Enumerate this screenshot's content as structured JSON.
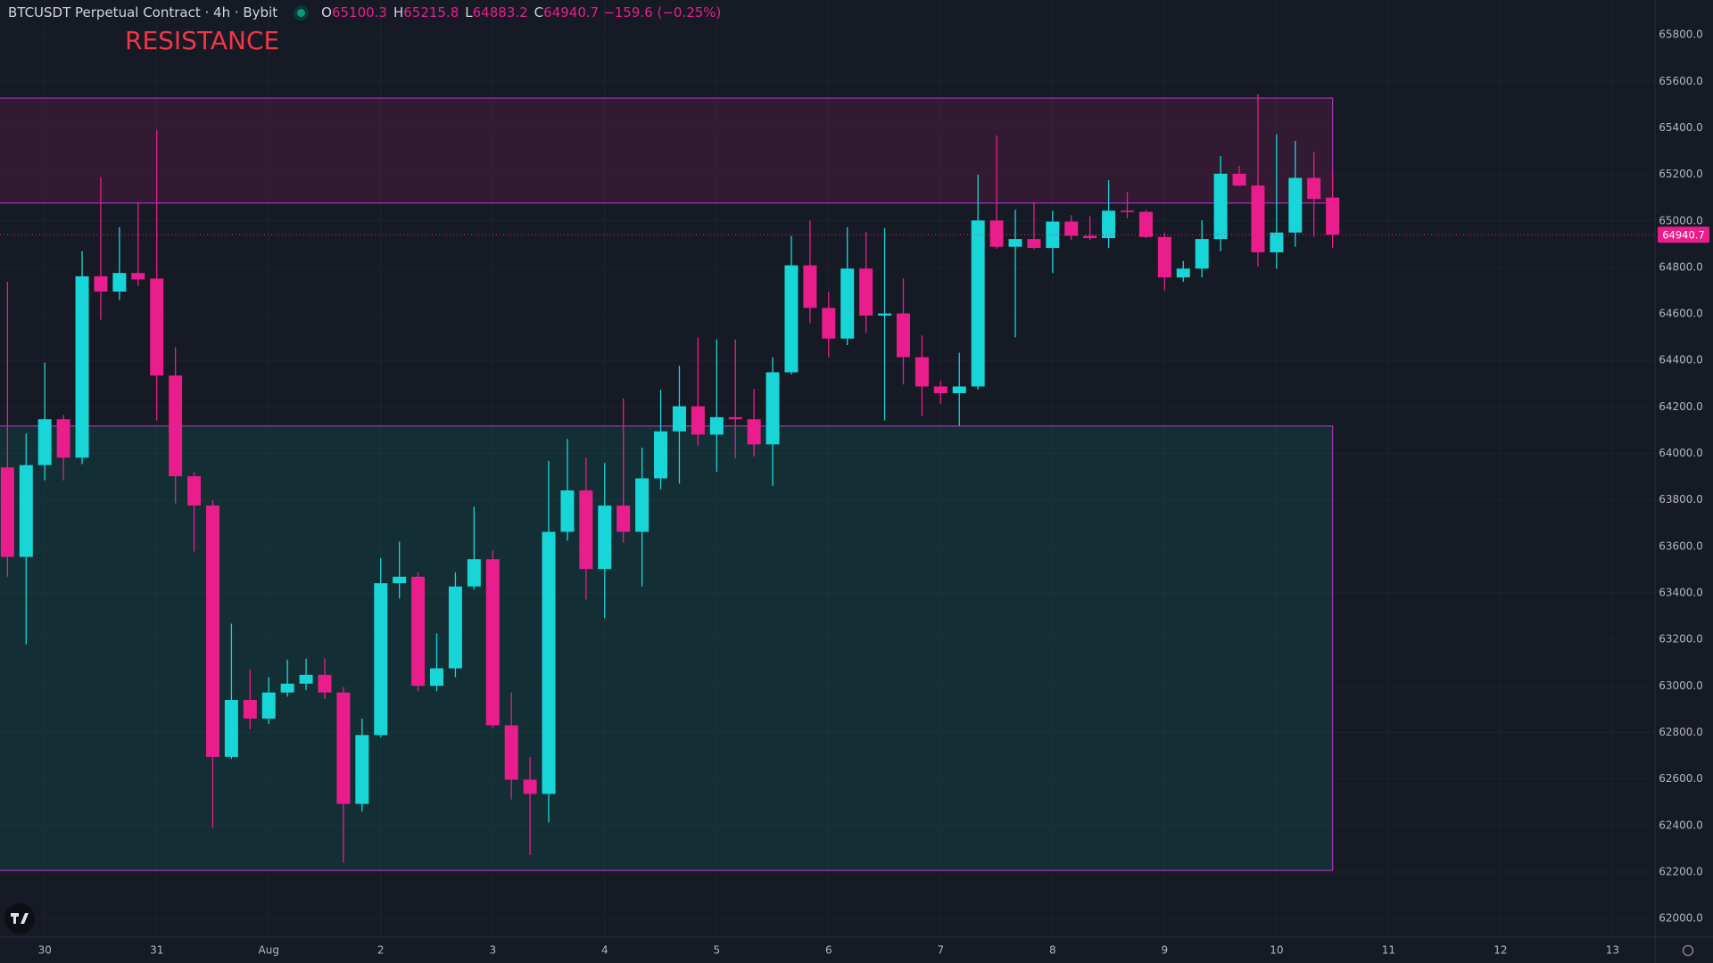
{
  "chart_data": {
    "type": "candlestick",
    "title": "BTCUSDT Perpetual Contract · 4h · Bybit",
    "ohlc_labels": [
      "O",
      "H",
      "L",
      "C"
    ],
    "change": "−159.6 (−0.25%)",
    "up_color": "#18d6d8",
    "down_color": "#e91e8c",
    "x": [
      -8,
      -4,
      0,
      4,
      8,
      12,
      16,
      20,
      24,
      28,
      32,
      36,
      40,
      44,
      48,
      52,
      56,
      60,
      64,
      68,
      72,
      76,
      80,
      84,
      88,
      92,
      96,
      100,
      104,
      108,
      112,
      116,
      120,
      124,
      128,
      132,
      136,
      140,
      144,
      148,
      152,
      156,
      160,
      164,
      168,
      172,
      176,
      180,
      184,
      188,
      192,
      196,
      200,
      204,
      208,
      212,
      216,
      220,
      224,
      228,
      232,
      236,
      240,
      244,
      248,
      252,
      256,
      260,
      264,
      268,
      272,
      276
    ],
    "open": [
      63940,
      63555,
      63950,
      64147,
      63982,
      64762,
      64696,
      64776,
      64752,
      64335,
      63902,
      63776,
      62695,
      62940,
      62860,
      62972,
      63010,
      63048,
      62972,
      62493,
      62789,
      63442,
      63470,
      63001,
      63076,
      63428,
      63545,
      62831,
      62597,
      62536,
      63663,
      63841,
      63503,
      63776,
      63663,
      63893,
      64095,
      64203,
      64081,
      64156,
      64147,
      64039,
      64349,
      64809,
      64626,
      64494,
      64795,
      64593,
      64602,
      64414,
      64288,
      64259,
      64288,
      65002,
      64889,
      64922,
      64884,
      64997,
      64936,
      64926,
      65044,
      65039,
      64931,
      64757,
      64795,
      64922,
      65203,
      65152,
      64865,
      64950,
      65185,
      65100.3
    ],
    "high": [
      64738,
      64086,
      64391,
      64166,
      64870,
      65189,
      64973,
      65081,
      65391,
      64457,
      63920,
      63799,
      63268,
      63071,
      63038,
      63113,
      63118,
      63118,
      62996,
      62860,
      63550,
      63621,
      63489,
      63226,
      63489,
      63771,
      63583,
      62972,
      62695,
      63968,
      64062,
      63982,
      63959,
      64236,
      64025,
      64274,
      64377,
      64499,
      64490,
      64490,
      64278,
      64414,
      64936,
      65002,
      64696,
      64973,
      64954,
      64969,
      64753,
      64508,
      64311,
      64433,
      65199,
      65368,
      65048,
      65081,
      65044,
      65025,
      65020,
      65175,
      65124,
      65048,
      64950,
      64828,
      65002,
      65279,
      65236,
      65546,
      65373,
      65344,
      65297,
      65215.8
    ],
    "low": [
      63470,
      63179,
      63884,
      63884,
      63954,
      64574,
      64659,
      64720,
      64142,
      63785,
      63578,
      62390,
      62686,
      62813,
      62836,
      62954,
      62982,
      62944,
      62240,
      62460,
      62780,
      63376,
      62977,
      62977,
      63038,
      63414,
      62820,
      62512,
      62273,
      62413,
      63625,
      63372,
      63292,
      63616,
      63428,
      63846,
      63870,
      64034,
      63921,
      63978,
      63987,
      63860,
      64340,
      64560,
      64414,
      64466,
      64518,
      64142,
      64297,
      64161,
      64213,
      64119,
      64274,
      64880,
      64499,
      64879,
      64776,
      64917,
      64917,
      64884,
      65011,
      64926,
      64701,
      64738,
      64757,
      64870,
      65150,
      64804,
      64795,
      64889,
      64931,
      64883.2
    ],
    "close": [
      63555,
      63950,
      64147,
      63982,
      64762,
      64696,
      64776,
      64748,
      64335,
      63902,
      63776,
      62695,
      62940,
      62860,
      62972,
      63010,
      63048,
      62972,
      62493,
      62789,
      63442,
      63470,
      63001,
      63076,
      63428,
      63545,
      62831,
      62597,
      62536,
      63663,
      63841,
      63503,
      63776,
      63663,
      63893,
      64095,
      64203,
      64081,
      64156,
      64147,
      64039,
      64349,
      64809,
      64626,
      64494,
      64795,
      64593,
      64602,
      64414,
      64288,
      64259,
      64288,
      65002,
      64889,
      64922,
      64884,
      64997,
      64936,
      64926,
      65044,
      65039,
      64931,
      64757,
      64795,
      64922,
      65203,
      65152,
      64865,
      64950,
      65185,
      65095,
      64940.7
    ],
    "xlim": [
      -9.6,
      345.1
    ],
    "xticks": [
      {
        "value": 0,
        "label": "30"
      },
      {
        "value": 24,
        "label": "31"
      },
      {
        "value": 48,
        "label": "Aug"
      },
      {
        "value": 72,
        "label": "2"
      },
      {
        "value": 96,
        "label": "3"
      },
      {
        "value": 120,
        "label": "4"
      },
      {
        "value": 144,
        "label": "5"
      },
      {
        "value": 168,
        "label": "6"
      },
      {
        "value": 192,
        "label": "7"
      },
      {
        "value": 216,
        "label": "8"
      },
      {
        "value": 240,
        "label": "9"
      },
      {
        "value": 264,
        "label": "10"
      },
      {
        "value": 288,
        "label": "11"
      },
      {
        "value": 312,
        "label": "12"
      },
      {
        "value": 336,
        "label": "13"
      }
    ],
    "ylim": [
      61920,
      65950
    ],
    "yticks": [
      {
        "value": 62000,
        "label": "62000.0"
      },
      {
        "value": 62200,
        "label": "62200.0"
      },
      {
        "value": 62400,
        "label": "62400.0"
      },
      {
        "value": 62600,
        "label": "62600.0"
      },
      {
        "value": 62800,
        "label": "62800.0"
      },
      {
        "value": 63000,
        "label": "63000.0"
      },
      {
        "value": 63200,
        "label": "63200.0"
      },
      {
        "value": 63400,
        "label": "63400.0"
      },
      {
        "value": 63600,
        "label": "63600.0"
      },
      {
        "value": 63800,
        "label": "63800.0"
      },
      {
        "value": 64000,
        "label": "64000.0"
      },
      {
        "value": 64200,
        "label": "64200.0"
      },
      {
        "value": 64400,
        "label": "64400.0"
      },
      {
        "value": 64600,
        "label": "64600.0"
      },
      {
        "value": 64800,
        "label": "64800.0"
      },
      {
        "value": 65000,
        "label": "65000.0"
      },
      {
        "value": 65200,
        "label": "65200.0"
      },
      {
        "value": 65400,
        "label": "65400.0"
      },
      {
        "value": 65600,
        "label": "65600.0"
      },
      {
        "value": 65800,
        "label": "65800.0"
      }
    ],
    "grid": true,
    "zones": [
      {
        "label": "RESISTANCE",
        "top": 65528,
        "bottom": 65077,
        "x_end": 276
      },
      {
        "top": 64118,
        "bottom": 62207,
        "x_end": 276
      }
    ]
  }
}
